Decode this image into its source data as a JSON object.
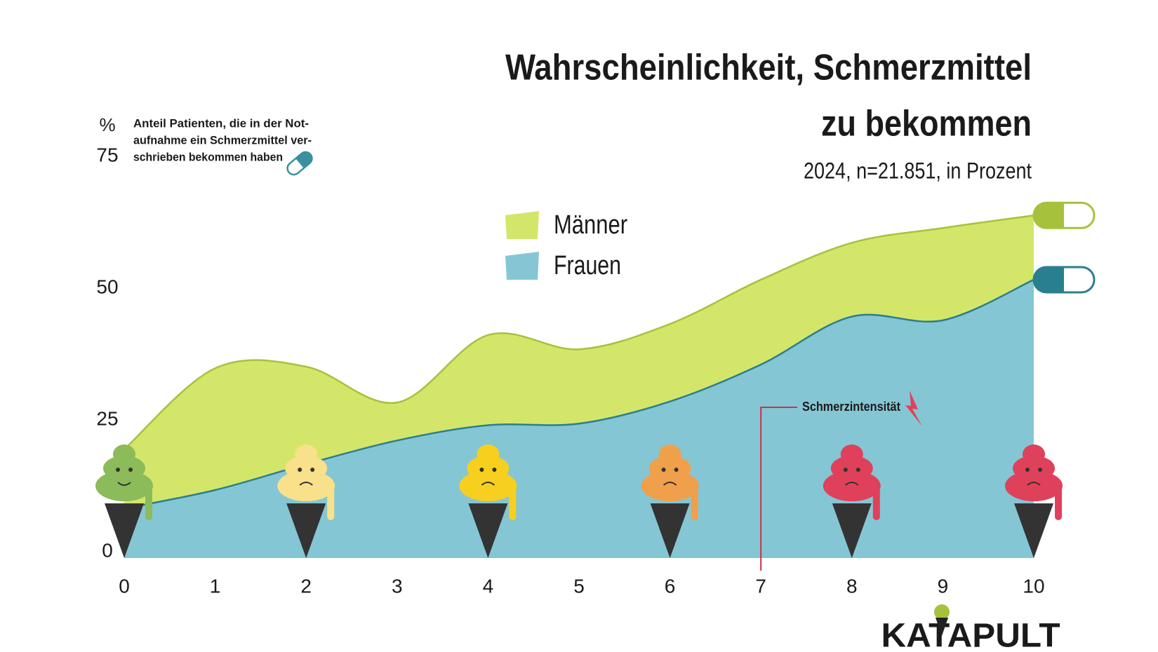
{
  "chart_data": {
    "type": "area",
    "title": [
      "Wahrscheinlichkeit, Schmerzmittel",
      "zu bekommen"
    ],
    "subtitle": "2024, n=21.851, in Prozent",
    "y_unit": "%",
    "note": [
      "Anteil Patienten, die in der Not-",
      "aufnahme ein Schmerzmittel ver-",
      "schrieben bekommen haben"
    ],
    "annotation": {
      "x": 7,
      "text": "Schmerzintensität"
    },
    "x": [
      0,
      1,
      2,
      3,
      4,
      5,
      6,
      7,
      8,
      9,
      10
    ],
    "xlim": [
      0,
      10
    ],
    "xticks": [
      0,
      1,
      2,
      3,
      4,
      5,
      6,
      7,
      8,
      9,
      10
    ],
    "ylim": [
      0,
      75
    ],
    "yticks": [
      0,
      25,
      50,
      75
    ],
    "legend": "top-center",
    "series": [
      {
        "name": "Männer",
        "color": "#d4e66a",
        "line_color": "#a6c23c",
        "values": [
          20.6,
          36,
          36.3,
          29.5,
          42.3,
          39.6,
          44.4,
          52.8,
          59.8,
          62.6,
          65
        ]
      },
      {
        "name": "Frauen",
        "color": "#85c6d4",
        "line_color": "#2a7f8f",
        "values": [
          9.4,
          12.9,
          17.8,
          22.3,
          25.2,
          25.5,
          29.7,
          36.7,
          45.8,
          45.1,
          52.8
        ]
      }
    ],
    "logo": "KATAPULT"
  }
}
